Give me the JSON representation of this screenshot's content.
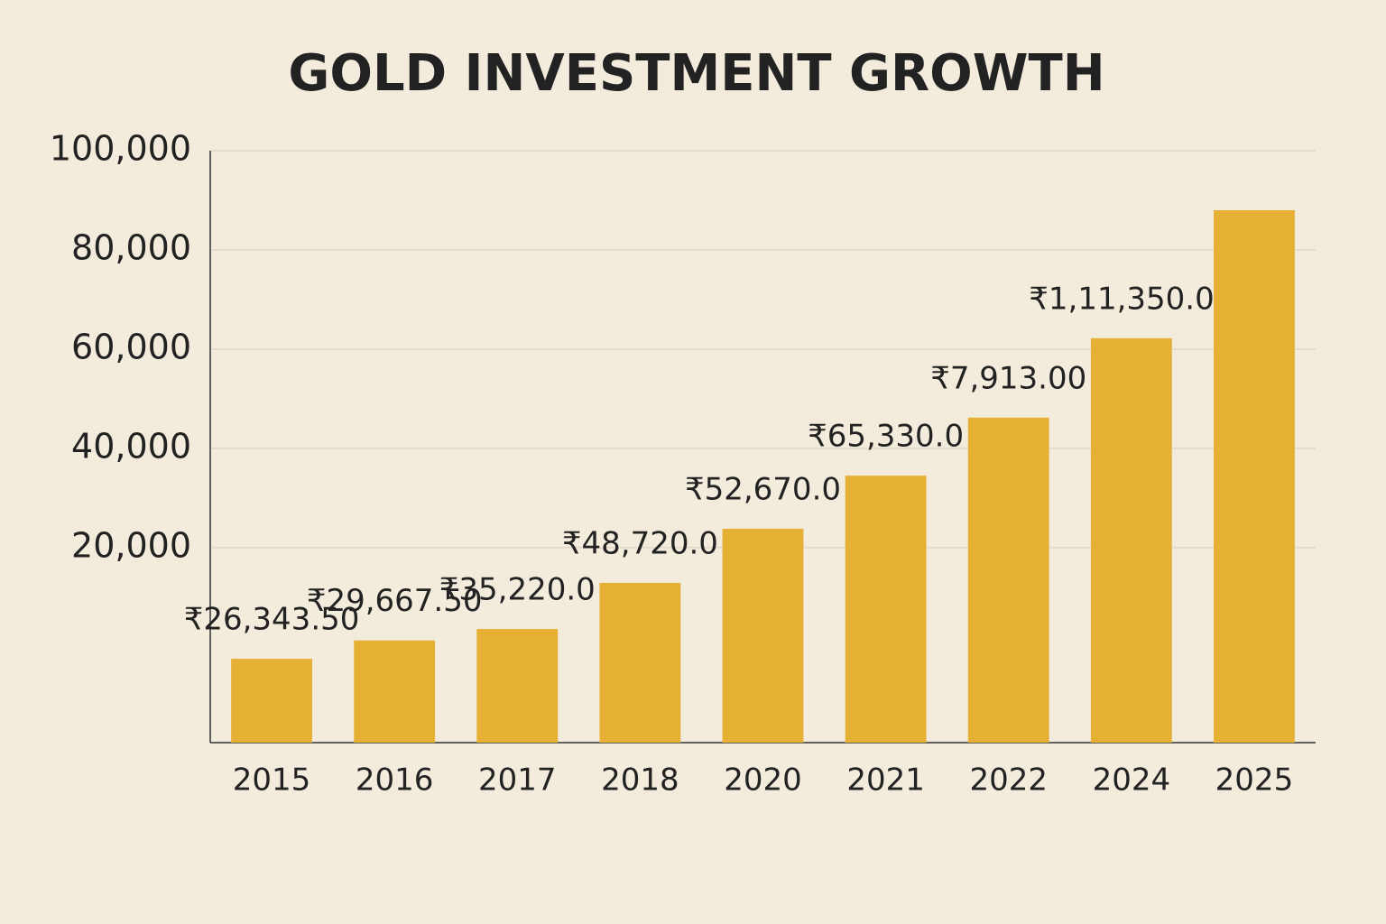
{
  "chart_data": {
    "type": "bar",
    "title": "GOLD INVESTMENT GROWTH",
    "categories": [
      "2015",
      "2016",
      "2017",
      "2018",
      "2020",
      "2021",
      "2022",
      "2024",
      "2025"
    ],
    "values": [
      -2400,
      1300,
      3600,
      12900,
      23800,
      34500,
      46200,
      62200,
      88000
    ],
    "bar_texts": [
      "₹26,343.50",
      "₹29,667.50",
      "₹35,220.0",
      "₹48,720.0",
      "₹52,670.0",
      "₹65,330.0",
      "₹7,913.00",
      "₹1,11,350.00",
      ""
    ],
    "color": "#e5b034",
    "ylim": [
      -19300,
      100000
    ],
    "yticks": [
      {
        "value": 20000,
        "label": "20,000"
      },
      {
        "value": 40000,
        "label": "40,000"
      },
      {
        "value": 60000,
        "label": "60,000"
      },
      {
        "value": 80000,
        "label": "80,000"
      },
      {
        "value": 100000,
        "label": "100,000"
      }
    ],
    "grid": true
  }
}
